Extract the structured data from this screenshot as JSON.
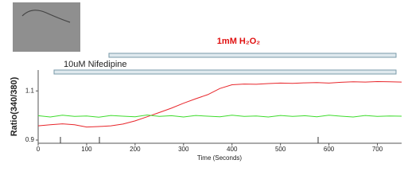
{
  "chart_data": {
    "type": "line",
    "xlabel": "Time (Seconds)",
    "ylabel": "Ratio(340/380)",
    "annotations": [
      "1mM H₂O₂",
      "10uM Nifedipine"
    ],
    "x": [
      0,
      25,
      50,
      75,
      100,
      125,
      150,
      175,
      200,
      225,
      250,
      275,
      300,
      325,
      350,
      375,
      400,
      425,
      450,
      475,
      500,
      525,
      550,
      575,
      600,
      625,
      650,
      675,
      700,
      725,
      750
    ],
    "series": [
      {
        "color": "#e8262b",
        "values": [
          0.958,
          0.962,
          0.966,
          0.962,
          0.953,
          0.955,
          0.958,
          0.965,
          0.978,
          0.995,
          1.012,
          1.03,
          1.05,
          1.068,
          1.085,
          1.11,
          1.125,
          1.128,
          1.127,
          1.13,
          1.132,
          1.131,
          1.133,
          1.134,
          1.132,
          1.135,
          1.137,
          1.136,
          1.138,
          1.137,
          1.136
        ]
      },
      {
        "color": "#3ddc2c",
        "values": [
          0.999,
          0.994,
          1.001,
          0.996,
          0.998,
          0.993,
          1.0,
          0.997,
          0.995,
          1.002,
          0.996,
          0.999,
          0.994,
          1.0,
          0.997,
          0.995,
          1.001,
          0.996,
          0.998,
          0.994,
          1.0,
          0.996,
          0.999,
          0.995,
          1.001,
          0.997,
          0.994,
          1.0,
          0.996,
          0.998,
          0.997
        ]
      }
    ],
    "xlim": [
      0,
      750
    ],
    "ylim": [
      0.887,
      1.185
    ],
    "xticks": [
      0,
      100,
      200,
      300,
      400,
      500,
      600,
      700
    ],
    "yticks": [
      0.9,
      1.1
    ]
  }
}
